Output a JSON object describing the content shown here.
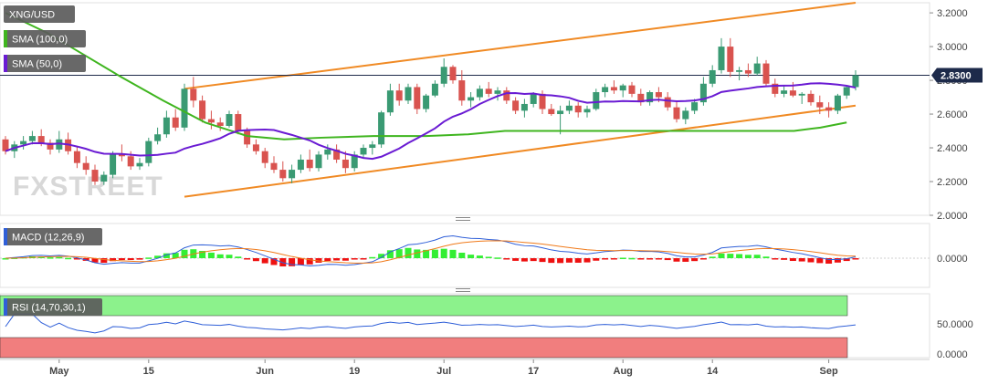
{
  "chart_data": [
    {
      "type": "candlestick",
      "symbol": "XNG/USD",
      "legend": [
        {
          "label": "XNG/USD",
          "color": "#5b5b5b"
        },
        {
          "label": "SMA (100,0)",
          "color": "#5b5b5b",
          "swatch": "#3fb51f"
        },
        {
          "label": "SMA (50,0)",
          "color": "#5b5b5b",
          "swatch": "#6a1bd3"
        }
      ],
      "ylim": [
        2.0,
        3.26
      ],
      "y_ticks": [
        "2.0000",
        "2.2000",
        "2.4000",
        "2.6000",
        "2.8000",
        "3.0000",
        "3.2000"
      ],
      "y_tick_values": [
        2.0,
        2.2,
        2.4,
        2.6,
        2.8,
        3.0,
        3.2
      ],
      "last_price_label": "2.8300",
      "last_price": 2.83,
      "x_labels": [
        "May",
        "15",
        "Jun",
        "19",
        "Jul",
        "17",
        "Aug",
        "14",
        "Sep"
      ],
      "x_label_index": [
        6,
        16,
        29,
        39,
        49,
        59,
        69,
        79,
        92
      ],
      "num_slots": 95,
      "ohlc": [
        [
          2.45,
          2.47,
          2.36,
          2.38
        ],
        [
          2.38,
          2.44,
          2.34,
          2.42
        ],
        [
          2.42,
          2.47,
          2.39,
          2.44
        ],
        [
          2.44,
          2.5,
          2.42,
          2.47
        ],
        [
          2.47,
          2.51,
          2.41,
          2.43
        ],
        [
          2.43,
          2.45,
          2.36,
          2.39
        ],
        [
          2.39,
          2.5,
          2.37,
          2.45
        ],
        [
          2.45,
          2.49,
          2.36,
          2.38
        ],
        [
          2.38,
          2.41,
          2.28,
          2.31
        ],
        [
          2.31,
          2.35,
          2.24,
          2.27
        ],
        [
          2.27,
          2.3,
          2.18,
          2.2
        ],
        [
          2.2,
          2.26,
          2.18,
          2.24
        ],
        [
          2.24,
          2.38,
          2.22,
          2.36
        ],
        [
          2.36,
          2.42,
          2.32,
          2.35
        ],
        [
          2.35,
          2.38,
          2.27,
          2.29
        ],
        [
          2.29,
          2.34,
          2.27,
          2.31
        ],
        [
          2.31,
          2.46,
          2.29,
          2.44
        ],
        [
          2.44,
          2.52,
          2.42,
          2.48
        ],
        [
          2.48,
          2.62,
          2.46,
          2.58
        ],
        [
          2.58,
          2.63,
          2.5,
          2.52
        ],
        [
          2.52,
          2.78,
          2.5,
          2.75
        ],
        [
          2.75,
          2.82,
          2.64,
          2.68
        ],
        [
          2.68,
          2.71,
          2.55,
          2.57
        ],
        [
          2.57,
          2.62,
          2.51,
          2.55
        ],
        [
          2.55,
          2.58,
          2.5,
          2.53
        ],
        [
          2.53,
          2.62,
          2.52,
          2.6
        ],
        [
          2.6,
          2.62,
          2.48,
          2.5
        ],
        [
          2.5,
          2.52,
          2.4,
          2.42
        ],
        [
          2.42,
          2.45,
          2.36,
          2.38
        ],
        [
          2.38,
          2.4,
          2.28,
          2.31
        ],
        [
          2.31,
          2.35,
          2.25,
          2.27
        ],
        [
          2.27,
          2.32,
          2.2,
          2.22
        ],
        [
          2.22,
          2.3,
          2.19,
          2.27
        ],
        [
          2.27,
          2.36,
          2.25,
          2.33
        ],
        [
          2.33,
          2.39,
          2.26,
          2.28
        ],
        [
          2.28,
          2.38,
          2.26,
          2.36
        ],
        [
          2.36,
          2.42,
          2.33,
          2.39
        ],
        [
          2.39,
          2.42,
          2.31,
          2.33
        ],
        [
          2.33,
          2.38,
          2.25,
          2.28
        ],
        [
          2.28,
          2.38,
          2.26,
          2.36
        ],
        [
          2.36,
          2.42,
          2.34,
          2.4
        ],
        [
          2.4,
          2.44,
          2.36,
          2.42
        ],
        [
          2.42,
          2.62,
          2.4,
          2.61
        ],
        [
          2.61,
          2.78,
          2.59,
          2.74
        ],
        [
          2.74,
          2.78,
          2.65,
          2.68
        ],
        [
          2.68,
          2.78,
          2.66,
          2.76
        ],
        [
          2.76,
          2.78,
          2.6,
          2.63
        ],
        [
          2.63,
          2.72,
          2.61,
          2.71
        ],
        [
          2.71,
          2.8,
          2.7,
          2.78
        ],
        [
          2.78,
          2.93,
          2.76,
          2.88
        ],
        [
          2.88,
          2.89,
          2.78,
          2.8
        ],
        [
          2.8,
          2.86,
          2.65,
          2.68
        ],
        [
          2.68,
          2.73,
          2.64,
          2.7
        ],
        [
          2.7,
          2.77,
          2.68,
          2.75
        ],
        [
          2.75,
          2.79,
          2.7,
          2.72
        ],
        [
          2.72,
          2.76,
          2.68,
          2.74
        ],
        [
          2.74,
          2.76,
          2.66,
          2.68
        ],
        [
          2.68,
          2.7,
          2.6,
          2.62
        ],
        [
          2.62,
          2.69,
          2.58,
          2.66
        ],
        [
          2.66,
          2.73,
          2.64,
          2.72
        ],
        [
          2.72,
          2.74,
          2.6,
          2.63
        ],
        [
          2.63,
          2.66,
          2.59,
          2.6
        ],
        [
          2.6,
          2.65,
          2.48,
          2.62
        ],
        [
          2.62,
          2.68,
          2.6,
          2.65
        ],
        [
          2.65,
          2.67,
          2.58,
          2.61
        ],
        [
          2.61,
          2.65,
          2.58,
          2.63
        ],
        [
          2.63,
          2.75,
          2.62,
          2.73
        ],
        [
          2.73,
          2.78,
          2.7,
          2.76
        ],
        [
          2.76,
          2.8,
          2.72,
          2.74
        ],
        [
          2.74,
          2.78,
          2.7,
          2.77
        ],
        [
          2.77,
          2.79,
          2.7,
          2.72
        ],
        [
          2.72,
          2.75,
          2.65,
          2.67
        ],
        [
          2.67,
          2.74,
          2.65,
          2.73
        ],
        [
          2.73,
          2.76,
          2.67,
          2.7
        ],
        [
          2.7,
          2.73,
          2.62,
          2.64
        ],
        [
          2.64,
          2.68,
          2.55,
          2.57
        ],
        [
          2.57,
          2.64,
          2.54,
          2.62
        ],
        [
          2.62,
          2.69,
          2.6,
          2.67
        ],
        [
          2.67,
          2.82,
          2.65,
          2.78
        ],
        [
          2.78,
          2.89,
          2.76,
          2.86
        ],
        [
          2.86,
          3.05,
          2.84,
          3.0
        ],
        [
          3.0,
          3.05,
          2.82,
          2.85
        ],
        [
          2.85,
          2.88,
          2.8,
          2.86
        ],
        [
          2.86,
          2.9,
          2.82,
          2.84
        ],
        [
          2.84,
          2.94,
          2.83,
          2.9
        ],
        [
          2.9,
          2.92,
          2.76,
          2.78
        ],
        [
          2.78,
          2.81,
          2.7,
          2.72
        ],
        [
          2.72,
          2.77,
          2.7,
          2.74
        ],
        [
          2.74,
          2.79,
          2.7,
          2.71
        ],
        [
          2.71,
          2.73,
          2.66,
          2.72
        ],
        [
          2.72,
          2.74,
          2.65,
          2.67
        ],
        [
          2.67,
          2.71,
          2.6,
          2.64
        ],
        [
          2.64,
          2.67,
          2.58,
          2.62
        ],
        [
          2.62,
          2.72,
          2.6,
          2.71
        ],
        [
          2.71,
          2.77,
          2.69,
          2.76
        ],
        [
          2.76,
          2.86,
          2.74,
          2.83
        ]
      ],
      "sma100": [
        [
          0,
          3.2
        ],
        [
          8,
          3.08
        ],
        [
          15,
          2.95
        ],
        [
          22,
          2.82
        ],
        [
          30,
          2.68
        ],
        [
          38,
          2.55
        ],
        [
          46,
          2.47
        ],
        [
          53,
          2.45
        ],
        [
          60,
          2.46
        ],
        [
          70,
          2.47
        ],
        [
          80,
          2.47
        ],
        [
          88,
          2.48
        ],
        [
          95,
          2.5
        ],
        [
          110,
          2.5
        ],
        [
          120,
          2.5
        ],
        [
          130,
          2.5
        ],
        [
          140,
          2.5
        ],
        [
          150,
          2.5
        ],
        [
          155,
          2.52
        ],
        [
          160,
          2.55
        ]
      ],
      "sma50": [
        [
          0,
          2.45
        ],
        [
          10,
          2.44
        ],
        [
          20,
          2.42
        ],
        [
          30,
          2.4
        ],
        [
          40,
          2.38
        ],
        [
          50,
          2.37
        ],
        [
          60,
          2.36
        ],
        [
          70,
          2.36
        ],
        [
          80,
          2.37
        ],
        [
          88,
          2.38
        ],
        [
          95,
          2.4
        ]
      ],
      "upper_channel": [
        [
          20,
          2.75
        ],
        [
          95,
          3.26
        ]
      ],
      "lower_channel": [
        [
          20,
          2.11
        ],
        [
          95,
          2.65
        ]
      ]
    },
    {
      "type": "macd",
      "label": "MACD (12,26,9)",
      "zero_label": "0.0000",
      "hist": [],
      "macd": [],
      "signal": []
    },
    {
      "type": "rsi",
      "label": "RSI (14,70,30,1)",
      "levels": [
        "50.0000",
        "0.0000"
      ],
      "upper_level": 70,
      "lower_level": 30,
      "ylim": [
        0,
        100
      ],
      "values": []
    }
  ],
  "watermark": "FXSTREET"
}
